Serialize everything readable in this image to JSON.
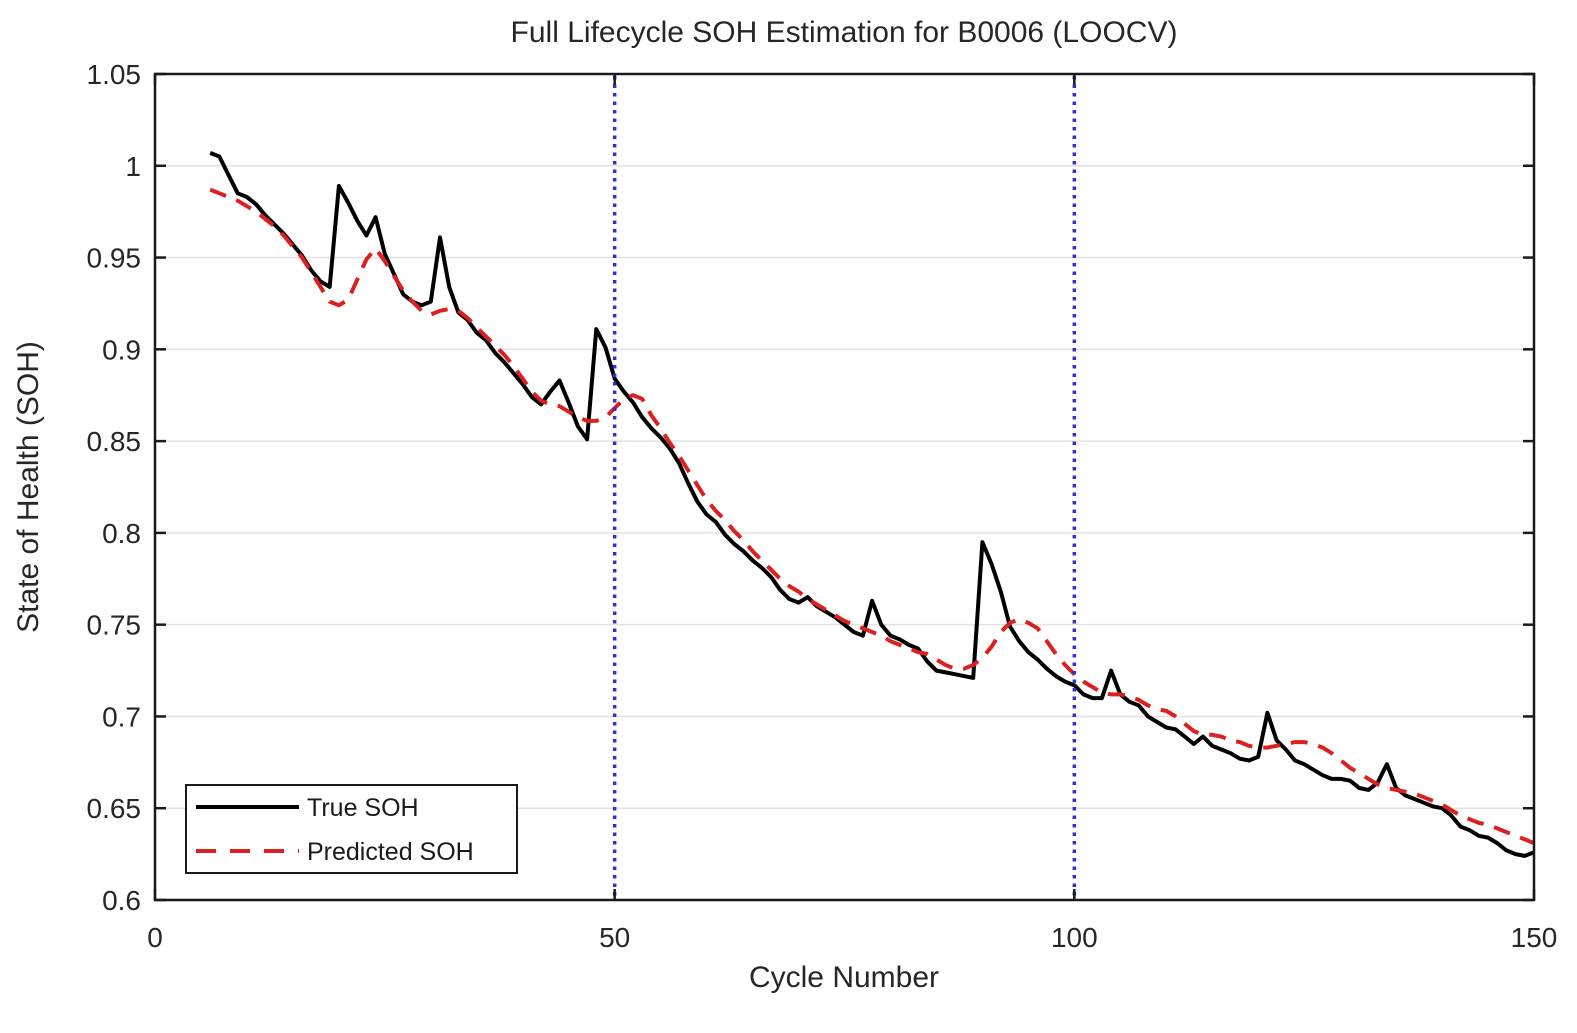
{
  "figure": {
    "background_color": "#ffffff",
    "text_color": "#262626",
    "axis_color": "#1a1a1a",
    "grid_color": "#e2e2e2"
  },
  "chart_data": {
    "type": "line",
    "title": "Full Lifecycle SOH Estimation for B0006 (LOOCV)",
    "xlabel": "Cycle Number",
    "ylabel": "State of Health (SOH)",
    "xlim": [
      0,
      150
    ],
    "ylim": [
      0.6,
      1.05
    ],
    "xticks": [
      {
        "v": 0,
        "label": "0"
      },
      {
        "v": 50,
        "label": "50"
      },
      {
        "v": 100,
        "label": "100"
      },
      {
        "v": 150,
        "label": "150"
      }
    ],
    "yticks": [
      {
        "v": 0.6,
        "label": "0.6"
      },
      {
        "v": 0.65,
        "label": "0.65"
      },
      {
        "v": 0.7,
        "label": "0.7"
      },
      {
        "v": 0.75,
        "label": "0.75"
      },
      {
        "v": 0.8,
        "label": "0.8"
      },
      {
        "v": 0.85,
        "label": "0.85"
      },
      {
        "v": 0.9,
        "label": "0.9"
      },
      {
        "v": 0.95,
        "label": "0.95"
      },
      {
        "v": 1,
        "label": "1"
      },
      {
        "v": 1.05,
        "label": "1.05"
      }
    ],
    "grid": "horizontal",
    "legend_position": "bottom-left",
    "vlines": {
      "x": [
        50,
        100
      ],
      "color": "#3030cf",
      "style": "dotted"
    },
    "series": [
      {
        "name": "True SOH",
        "color": "#000000",
        "style": "solid",
        "x": [
          6,
          7,
          8,
          9,
          10,
          11,
          12,
          13,
          14,
          15,
          16,
          17,
          18,
          19,
          20,
          21,
          22,
          23,
          24,
          25,
          26,
          27,
          28,
          29,
          30,
          31,
          32,
          33,
          34,
          35,
          36,
          37,
          38,
          39,
          40,
          41,
          42,
          43,
          44,
          45,
          46,
          47,
          48,
          49,
          50,
          51,
          52,
          53,
          54,
          55,
          56,
          57,
          58,
          59,
          60,
          61,
          62,
          63,
          64,
          65,
          66,
          67,
          68,
          69,
          70,
          71,
          72,
          73,
          74,
          75,
          76,
          77,
          78,
          79,
          80,
          81,
          82,
          83,
          84,
          85,
          86,
          87,
          88,
          89,
          90,
          91,
          92,
          93,
          94,
          95,
          96,
          97,
          98,
          99,
          100,
          101,
          102,
          103,
          104,
          105,
          106,
          107,
          108,
          109,
          110,
          111,
          112,
          113,
          114,
          115,
          116,
          117,
          118,
          119,
          120,
          121,
          122,
          123,
          124,
          125,
          126,
          127,
          128,
          129,
          130,
          131,
          132,
          133,
          134,
          135,
          136,
          137,
          138,
          139,
          140,
          141,
          142,
          143,
          144,
          145,
          146,
          147,
          148,
          149,
          150
        ],
        "y": [
          1.007,
          1.005,
          0.995,
          0.985,
          0.983,
          0.979,
          0.973,
          0.968,
          0.963,
          0.957,
          0.951,
          0.943,
          0.937,
          0.934,
          0.989,
          0.98,
          0.97,
          0.962,
          0.972,
          0.952,
          0.941,
          0.93,
          0.926,
          0.924,
          0.926,
          0.961,
          0.934,
          0.92,
          0.916,
          0.909,
          0.905,
          0.898,
          0.893,
          0.887,
          0.881,
          0.874,
          0.87,
          0.877,
          0.883,
          0.871,
          0.858,
          0.851,
          0.911,
          0.901,
          0.884,
          0.877,
          0.871,
          0.863,
          0.857,
          0.852,
          0.846,
          0.838,
          0.827,
          0.817,
          0.81,
          0.806,
          0.799,
          0.794,
          0.79,
          0.785,
          0.781,
          0.776,
          0.769,
          0.764,
          0.762,
          0.765,
          0.76,
          0.757,
          0.754,
          0.75,
          0.746,
          0.744,
          0.763,
          0.75,
          0.744,
          0.742,
          0.739,
          0.737,
          0.73,
          0.725,
          0.724,
          0.723,
          0.722,
          0.721,
          0.795,
          0.783,
          0.768,
          0.749,
          0.741,
          0.735,
          0.731,
          0.726,
          0.722,
          0.719,
          0.717,
          0.712,
          0.71,
          0.71,
          0.725,
          0.712,
          0.708,
          0.706,
          0.7,
          0.697,
          0.694,
          0.693,
          0.689,
          0.685,
          0.689,
          0.684,
          0.682,
          0.68,
          0.677,
          0.676,
          0.678,
          0.702,
          0.687,
          0.682,
          0.676,
          0.674,
          0.671,
          0.668,
          0.666,
          0.666,
          0.665,
          0.661,
          0.66,
          0.664,
          0.674,
          0.661,
          0.657,
          0.655,
          0.653,
          0.651,
          0.65,
          0.646,
          0.64,
          0.638,
          0.635,
          0.634,
          0.631,
          0.627,
          0.625,
          0.624,
          0.626
        ]
      },
      {
        "name": "Predicted SOH",
        "color": "#dc2020",
        "style": "dashed",
        "x": [
          6,
          7,
          8,
          9,
          10,
          11,
          12,
          13,
          14,
          15,
          16,
          17,
          18,
          19,
          20,
          21,
          22,
          23,
          24,
          25,
          26,
          27,
          28,
          29,
          30,
          31,
          32,
          33,
          34,
          35,
          36,
          37,
          38,
          39,
          40,
          41,
          42,
          43,
          44,
          45,
          46,
          47,
          48,
          49,
          50,
          51,
          52,
          53,
          54,
          55,
          56,
          57,
          58,
          59,
          60,
          61,
          62,
          63,
          64,
          65,
          66,
          67,
          68,
          69,
          70,
          71,
          72,
          73,
          74,
          75,
          76,
          77,
          78,
          79,
          80,
          81,
          82,
          83,
          84,
          85,
          86,
          87,
          88,
          89,
          90,
          91,
          92,
          93,
          94,
          95,
          96,
          97,
          98,
          99,
          100,
          101,
          102,
          103,
          104,
          105,
          106,
          107,
          108,
          109,
          110,
          111,
          112,
          113,
          114,
          115,
          116,
          117,
          118,
          119,
          120,
          121,
          122,
          123,
          124,
          125,
          126,
          127,
          128,
          129,
          130,
          131,
          132,
          133,
          134,
          135,
          136,
          137,
          138,
          139,
          140,
          141,
          142,
          143,
          144,
          145,
          146,
          147,
          148,
          149,
          150
        ],
        "y": [
          0.987,
          0.985,
          0.983,
          0.981,
          0.978,
          0.975,
          0.971,
          0.967,
          0.962,
          0.956,
          0.95,
          0.942,
          0.934,
          0.926,
          0.924,
          0.927,
          0.938,
          0.949,
          0.955,
          0.948,
          0.94,
          0.932,
          0.926,
          0.921,
          0.919,
          0.921,
          0.922,
          0.921,
          0.917,
          0.912,
          0.907,
          0.902,
          0.897,
          0.891,
          0.884,
          0.877,
          0.872,
          0.87,
          0.869,
          0.866,
          0.863,
          0.861,
          0.861,
          0.863,
          0.868,
          0.873,
          0.875,
          0.873,
          0.864,
          0.857,
          0.849,
          0.842,
          0.834,
          0.826,
          0.818,
          0.812,
          0.807,
          0.801,
          0.796,
          0.79,
          0.785,
          0.78,
          0.775,
          0.771,
          0.768,
          0.764,
          0.761,
          0.758,
          0.755,
          0.752,
          0.75,
          0.748,
          0.746,
          0.744,
          0.741,
          0.739,
          0.737,
          0.735,
          0.734,
          0.731,
          0.728,
          0.726,
          0.726,
          0.728,
          0.732,
          0.738,
          0.746,
          0.751,
          0.753,
          0.751,
          0.748,
          0.741,
          0.734,
          0.728,
          0.723,
          0.719,
          0.716,
          0.713,
          0.712,
          0.712,
          0.711,
          0.709,
          0.706,
          0.704,
          0.703,
          0.7,
          0.696,
          0.692,
          0.69,
          0.69,
          0.689,
          0.687,
          0.686,
          0.684,
          0.683,
          0.683,
          0.684,
          0.685,
          0.686,
          0.686,
          0.685,
          0.683,
          0.68,
          0.676,
          0.672,
          0.669,
          0.666,
          0.663,
          0.661,
          0.66,
          0.659,
          0.658,
          0.656,
          0.654,
          0.652,
          0.649,
          0.646,
          0.644,
          0.642,
          0.641,
          0.639,
          0.637,
          0.635,
          0.633,
          0.631
        ]
      }
    ]
  }
}
